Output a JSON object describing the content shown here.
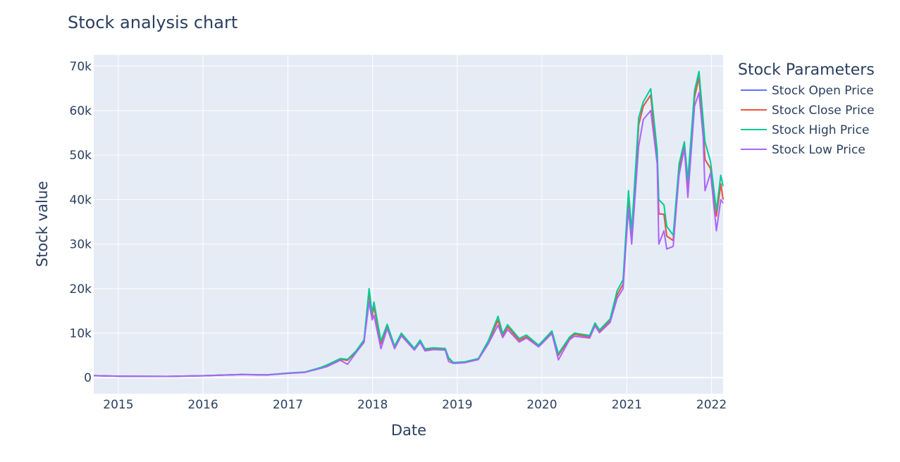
{
  "chart_data": {
    "type": "line",
    "title": "Stock analysis chart",
    "xlabel": "Date",
    "ylabel": "Stock value",
    "x_range": [
      "2014-09-17",
      "2022-02-20"
    ],
    "ylim": [
      -3600,
      72500
    ],
    "x_ticks": [
      {
        "date": "2015-01-01",
        "label": "2015"
      },
      {
        "date": "2016-01-01",
        "label": "2016"
      },
      {
        "date": "2017-01-01",
        "label": "2017"
      },
      {
        "date": "2018-01-01",
        "label": "2018"
      },
      {
        "date": "2019-01-01",
        "label": "2019"
      },
      {
        "date": "2020-01-01",
        "label": "2020"
      },
      {
        "date": "2021-01-01",
        "label": "2021"
      },
      {
        "date": "2022-01-01",
        "label": "2022"
      }
    ],
    "y_ticks": [
      {
        "value": 0,
        "label": "0"
      },
      {
        "value": 10000,
        "label": "10k"
      },
      {
        "value": 20000,
        "label": "20k"
      },
      {
        "value": 30000,
        "label": "30k"
      },
      {
        "value": 40000,
        "label": "40k"
      },
      {
        "value": 50000,
        "label": "50k"
      },
      {
        "value": 60000,
        "label": "60k"
      },
      {
        "value": 70000,
        "label": "70k"
      }
    ],
    "grid": true,
    "legend": {
      "title": "Stock Parameters",
      "position": "right"
    },
    "dates": [
      "2014-09-17",
      "2015-01-14",
      "2015-08-01",
      "2016-01-01",
      "2016-06-15",
      "2016-10-01",
      "2017-01-01",
      "2017-03-15",
      "2017-05-20",
      "2017-06-20",
      "2017-08-15",
      "2017-09-15",
      "2017-10-20",
      "2017-11-25",
      "2017-12-17",
      "2017-12-30",
      "2018-01-07",
      "2018-02-06",
      "2018-03-05",
      "2018-04-06",
      "2018-05-05",
      "2018-06-30",
      "2018-07-25",
      "2018-08-15",
      "2018-09-20",
      "2018-11-10",
      "2018-11-25",
      "2018-12-15",
      "2019-02-01",
      "2019-04-02",
      "2019-05-15",
      "2019-06-26",
      "2019-07-16",
      "2019-08-06",
      "2019-09-25",
      "2019-10-26",
      "2019-12-18",
      "2020-02-13",
      "2020-03-12",
      "2020-04-29",
      "2020-05-20",
      "2020-07-25",
      "2020-08-17",
      "2020-09-05",
      "2020-10-21",
      "2020-11-20",
      "2020-12-16",
      "2021-01-08",
      "2021-01-22",
      "2021-02-21",
      "2021-03-13",
      "2021-04-14",
      "2021-05-12",
      "2021-05-19",
      "2021-06-10",
      "2021-06-22",
      "2021-07-20",
      "2021-08-14",
      "2021-09-06",
      "2021-09-21",
      "2021-10-20",
      "2021-11-08",
      "2021-11-26",
      "2021-12-04",
      "2021-12-28",
      "2022-01-22",
      "2022-02-10",
      "2022-02-20"
    ],
    "series": [
      {
        "name": "Stock Open Price",
        "color": "#636efa",
        "values": [
          457,
          315,
          284,
          434,
          700,
          608,
          998,
          1230,
          2150,
          2700,
          4100,
          3900,
          5700,
          8200,
          19000,
          13900,
          16000,
          7600,
          11500,
          6800,
          9700,
          6400,
          8200,
          6300,
          6500,
          6400,
          4300,
          3300,
          3450,
          4150,
          7990,
          12900,
          9400,
          11400,
          8400,
          9200,
          7100,
          10200,
          5000,
          8800,
          9700,
          9200,
          12000,
          10400,
          12800,
          18600,
          21000,
          40000,
          31000,
          56800,
          61000,
          63500,
          49000,
          36800,
          36700,
          31800,
          30800,
          46800,
          52600,
          43000,
          63000,
          67500,
          56000,
          49000,
          47000,
          36300,
          43500,
          40000
        ]
      },
      {
        "name": "Stock Close Price",
        "color": "#ef553b",
        "values": [
          457,
          315,
          284,
          434,
          700,
          608,
          998,
          1230,
          2150,
          2700,
          4100,
          3900,
          5700,
          8200,
          19000,
          13900,
          16000,
          7600,
          11500,
          6800,
          9700,
          6400,
          8200,
          6300,
          6500,
          6400,
          4300,
          3300,
          3450,
          4150,
          7990,
          12900,
          9400,
          11400,
          8400,
          9200,
          7100,
          10200,
          5000,
          8800,
          9700,
          9200,
          12000,
          10400,
          12800,
          18600,
          21000,
          40000,
          31000,
          56800,
          61000,
          63500,
          49000,
          36800,
          36700,
          31800,
          30800,
          46800,
          52600,
          43000,
          63000,
          67500,
          56000,
          49000,
          47000,
          36300,
          43500,
          40000
        ]
      },
      {
        "name": "Stock High Price",
        "color": "#00cc96",
        "values": [
          468,
          320,
          290,
          440,
          720,
          620,
          1020,
          1260,
          2250,
          2900,
          4300,
          4100,
          5900,
          8500,
          20000,
          14500,
          17000,
          8200,
          12000,
          7100,
          10000,
          6600,
          8450,
          6500,
          6700,
          6550,
          4500,
          3400,
          3550,
          4300,
          8300,
          13800,
          9900,
          11900,
          8800,
          9600,
          7300,
          10500,
          5400,
          9100,
          10000,
          9500,
          12300,
          10700,
          13200,
          19500,
          22000,
          42000,
          33000,
          58400,
          62000,
          64900,
          51000,
          40000,
          38800,
          34000,
          32000,
          48000,
          53000,
          44500,
          64500,
          68800,
          58000,
          53000,
          48500,
          37500,
          45500,
          43000
        ]
      },
      {
        "name": "Stock Low Price",
        "color": "#ab63fa",
        "values": [
          440,
          300,
          275,
          420,
          680,
          590,
          960,
          1190,
          2050,
          2500,
          3900,
          3000,
          5500,
          7900,
          17000,
          13000,
          14000,
          6500,
          11000,
          6500,
          9400,
          6200,
          7900,
          6000,
          6300,
          6200,
          3600,
          3200,
          3350,
          4050,
          7600,
          11800,
          9000,
          10800,
          8000,
          8900,
          6900,
          9900,
          4000,
          8500,
          9300,
          8900,
          11600,
          10100,
          12400,
          17800,
          20000,
          38000,
          30000,
          52000,
          58000,
          60000,
          48000,
          30000,
          33000,
          28900,
          29500,
          45500,
          51500,
          40500,
          61000,
          64000,
          54000,
          42000,
          46000,
          33000,
          40000,
          39200
        ]
      }
    ]
  }
}
